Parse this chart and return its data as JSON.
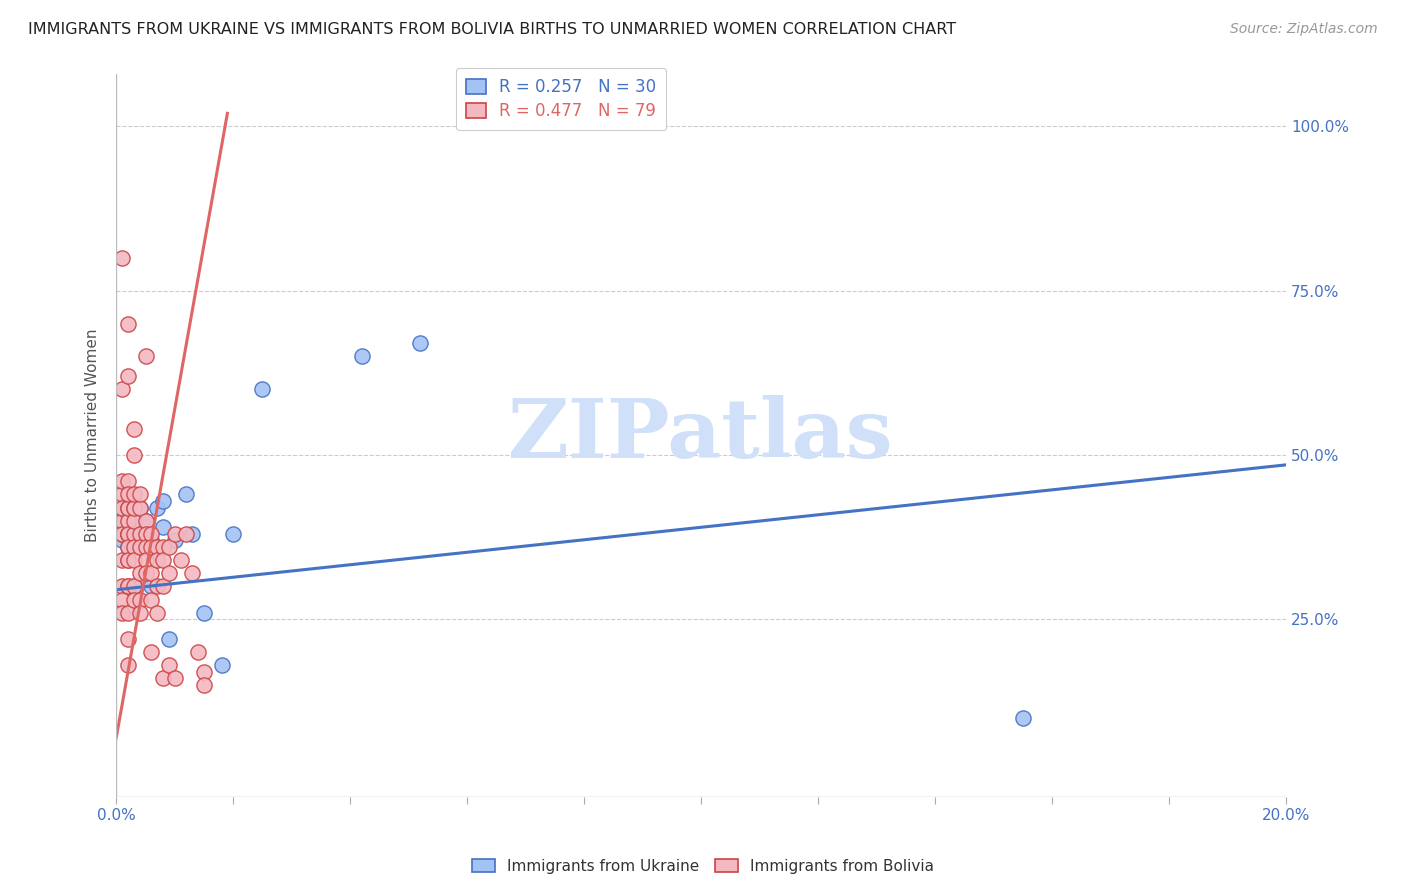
{
  "title": "IMMIGRANTS FROM UKRAINE VS IMMIGRANTS FROM BOLIVIA BIRTHS TO UNMARRIED WOMEN CORRELATION CHART",
  "source": "Source: ZipAtlas.com",
  "ylabel": "Births to Unmarried Women",
  "legend_ukraine": "Immigrants from Ukraine",
  "legend_bolivia": "Immigrants from Bolivia",
  "r_ukraine": 0.257,
  "n_ukraine": 30,
  "r_bolivia": 0.477,
  "n_bolivia": 79,
  "color_ukraine": "#a4c2f4",
  "color_bolivia": "#f4b8c1",
  "edge_color_ukraine": "#4472c4",
  "edge_color_bolivia": "#cc4444",
  "line_color_ukraine": "#4472c4",
  "line_color_bolivia": "#e06666",
  "watermark": "ZIPatlas",
  "watermark_color": "#d0e0f8",
  "background_color": "#ffffff",
  "xlim": [
    0.0,
    0.2
  ],
  "ylim": [
    -0.02,
    1.08
  ],
  "ukraine_line_x0": 0.0,
  "ukraine_line_y0": 0.295,
  "ukraine_line_x1": 0.2,
  "ukraine_line_y1": 0.485,
  "bolivia_line_x0": 0.0,
  "bolivia_line_y0": 0.07,
  "bolivia_line_x1": 0.019,
  "bolivia_line_y1": 1.02,
  "ukraine_x": [
    0.001,
    0.001,
    0.002,
    0.002,
    0.003,
    0.003,
    0.003,
    0.003,
    0.004,
    0.004,
    0.004,
    0.005,
    0.005,
    0.005,
    0.006,
    0.006,
    0.007,
    0.008,
    0.008,
    0.009,
    0.01,
    0.012,
    0.013,
    0.015,
    0.018,
    0.02,
    0.025,
    0.042,
    0.052,
    0.155
  ],
  "ukraine_y": [
    0.37,
    0.4,
    0.36,
    0.4,
    0.3,
    0.36,
    0.4,
    0.42,
    0.36,
    0.38,
    0.42,
    0.36,
    0.38,
    0.4,
    0.3,
    0.37,
    0.42,
    0.39,
    0.43,
    0.22,
    0.37,
    0.44,
    0.38,
    0.26,
    0.18,
    0.38,
    0.6,
    0.65,
    0.67,
    0.1
  ],
  "bolivia_x": [
    0.001,
    0.001,
    0.001,
    0.001,
    0.001,
    0.001,
    0.001,
    0.001,
    0.001,
    0.001,
    0.001,
    0.001,
    0.001,
    0.002,
    0.002,
    0.002,
    0.002,
    0.002,
    0.002,
    0.002,
    0.002,
    0.002,
    0.002,
    0.002,
    0.002,
    0.002,
    0.002,
    0.002,
    0.002,
    0.002,
    0.002,
    0.003,
    0.003,
    0.003,
    0.003,
    0.003,
    0.003,
    0.003,
    0.003,
    0.003,
    0.003,
    0.003,
    0.004,
    0.004,
    0.004,
    0.004,
    0.004,
    0.004,
    0.004,
    0.005,
    0.005,
    0.005,
    0.005,
    0.005,
    0.005,
    0.006,
    0.006,
    0.006,
    0.006,
    0.006,
    0.007,
    0.007,
    0.007,
    0.007,
    0.008,
    0.008,
    0.008,
    0.008,
    0.009,
    0.009,
    0.009,
    0.01,
    0.01,
    0.011,
    0.012,
    0.013,
    0.014,
    0.015,
    0.015
  ],
  "bolivia_y": [
    0.38,
    0.4,
    0.42,
    0.44,
    0.46,
    0.42,
    0.38,
    0.34,
    0.3,
    0.28,
    0.26,
    0.6,
    0.8,
    0.7,
    0.62,
    0.46,
    0.42,
    0.38,
    0.34,
    0.3,
    0.26,
    0.22,
    0.18,
    0.38,
    0.4,
    0.42,
    0.44,
    0.38,
    0.36,
    0.34,
    0.3,
    0.5,
    0.54,
    0.42,
    0.38,
    0.36,
    0.34,
    0.3,
    0.28,
    0.4,
    0.42,
    0.44,
    0.38,
    0.36,
    0.32,
    0.28,
    0.26,
    0.42,
    0.44,
    0.4,
    0.38,
    0.36,
    0.34,
    0.32,
    0.65,
    0.38,
    0.36,
    0.32,
    0.28,
    0.2,
    0.36,
    0.34,
    0.3,
    0.26,
    0.36,
    0.34,
    0.3,
    0.16,
    0.36,
    0.32,
    0.18,
    0.38,
    0.16,
    0.34,
    0.38,
    0.32,
    0.2,
    0.17,
    0.15
  ]
}
